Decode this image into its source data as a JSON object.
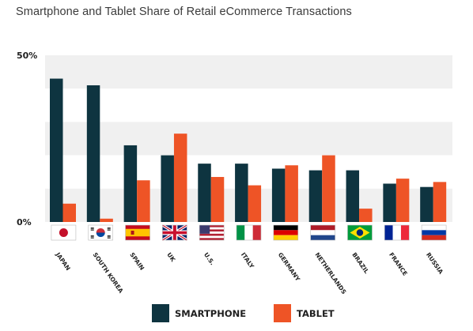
{
  "chart_data": {
    "type": "bar",
    "title": "Smartphone and Tablet Share of Retail eCommerce Transactions",
    "xlabel": "",
    "ylabel": "",
    "ylim": [
      0,
      50
    ],
    "y_ticks": [
      "50%",
      "0%"
    ],
    "categories": [
      "JAPAN",
      "SOUTH KOREA",
      "SPAIN",
      "UK",
      "U.S.",
      "ITALY",
      "GERMANY",
      "NETHERLANDS",
      "BRAZIL",
      "FRANCE",
      "RUSSIA"
    ],
    "series": [
      {
        "name": "SMARTPHONE",
        "color": "#0e3440",
        "values": [
          43,
          41,
          23,
          20,
          17.5,
          17.5,
          16,
          15.5,
          15.5,
          11.5,
          10.5
        ]
      },
      {
        "name": "TABLET",
        "color": "#ee5426",
        "values": [
          5.5,
          1,
          12.5,
          26.5,
          13.5,
          11,
          17,
          20,
          4,
          13,
          12
        ]
      }
    ],
    "legend_position": "bottom-center",
    "grid": "alternating horizontal bands",
    "flags": [
      "japan-flag-icon",
      "south-korea-flag-icon",
      "spain-flag-icon",
      "uk-flag-icon",
      "us-flag-icon",
      "italy-flag-icon",
      "germany-flag-icon",
      "netherlands-flag-icon",
      "brazil-flag-icon",
      "france-flag-icon",
      "russia-flag-icon"
    ]
  }
}
